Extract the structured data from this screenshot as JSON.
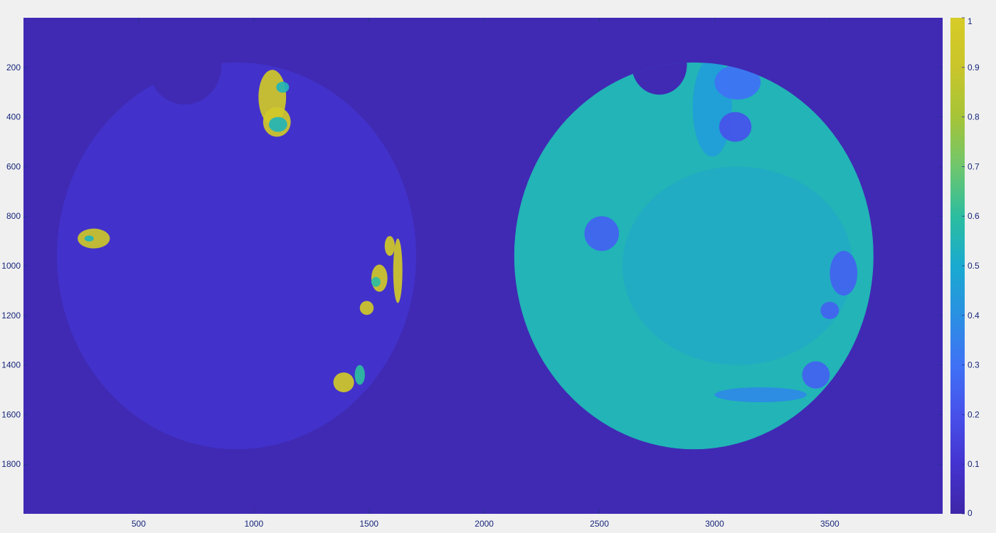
{
  "chart_data": {
    "type": "heatmap",
    "title": "",
    "xlabel": "",
    "ylabel": "",
    "x_ticks": [
      500,
      1000,
      1500,
      2000,
      2500,
      3000,
      3500
    ],
    "y_ticks": [
      200,
      400,
      600,
      800,
      1000,
      1200,
      1400,
      1600,
      1800
    ],
    "xlim": [
      0,
      3990
    ],
    "ylim": [
      0,
      2000
    ],
    "y_direction": "reversed",
    "colormap": "parula",
    "color_range": [
      0,
      1
    ],
    "colorbar": {
      "ticks": [
        0,
        0.1,
        0.2,
        0.3,
        0.4,
        0.5,
        0.6,
        0.7,
        0.8,
        0.9,
        1
      ],
      "tick_labels": [
        "0",
        "0.1",
        "0.2",
        "0.3",
        "0.4",
        "0.5",
        "0.6",
        "0.7",
        "0.8",
        "0.9",
        "1"
      ],
      "placement": "right"
    },
    "background_value": 0.03,
    "regions": [
      {
        "name": "left-disc",
        "shape": "disc",
        "center": [
          925,
          960
        ],
        "radius": 780,
        "notch": {
          "center": [
            700,
            190
          ],
          "radius": 160
        },
        "base_value": 0.09,
        "spots": [
          {
            "center": [
              1080,
              320
            ],
            "rx": 60,
            "ry": 110,
            "value": 0.95
          },
          {
            "center": [
              1100,
              420
            ],
            "rx": 60,
            "ry": 60,
            "value": 0.95
          },
          {
            "center": [
              1105,
              430
            ],
            "rx": 40,
            "ry": 30,
            "value": 0.55
          },
          {
            "center": [
              1125,
              280
            ],
            "rx": 28,
            "ry": 22,
            "value": 0.55
          },
          {
            "center": [
              305,
              890
            ],
            "rx": 70,
            "ry": 40,
            "value": 0.92
          },
          {
            "center": [
              285,
              890
            ],
            "rx": 20,
            "ry": 12,
            "value": 0.55
          },
          {
            "center": [
              1545,
              1050
            ],
            "rx": 35,
            "ry": 55,
            "value": 0.95
          },
          {
            "center": [
              1530,
              1065
            ],
            "rx": 20,
            "ry": 20,
            "value": 0.6
          },
          {
            "center": [
              1625,
              1020
            ],
            "rx": 20,
            "ry": 130,
            "value": 0.95
          },
          {
            "center": [
              1590,
              920
            ],
            "rx": 22,
            "ry": 40,
            "value": 0.95
          },
          {
            "center": [
              1490,
              1170
            ],
            "rx": 30,
            "ry": 28,
            "value": 0.95
          },
          {
            "center": [
              1390,
              1470
            ],
            "rx": 45,
            "ry": 40,
            "value": 0.95
          },
          {
            "center": [
              1460,
              1440
            ],
            "rx": 22,
            "ry": 40,
            "value": 0.6
          }
        ]
      },
      {
        "name": "right-disc",
        "shape": "disc",
        "center": [
          2910,
          960
        ],
        "radius": 780,
        "notch": {
          "center": [
            2760,
            190
          ],
          "radius": 120
        },
        "base_value": 0.55,
        "spots": [
          {
            "center": [
              2990,
              360
            ],
            "rx": 85,
            "ry": 200,
            "value": 0.45
          },
          {
            "center": [
              3100,
              260
            ],
            "rx": 100,
            "ry": 70,
            "value": 0.3
          },
          {
            "center": [
              3090,
              440
            ],
            "rx": 70,
            "ry": 60,
            "value": 0.2
          },
          {
            "center": [
              2510,
              870
            ],
            "rx": 75,
            "ry": 70,
            "value": 0.25
          },
          {
            "center": [
              3560,
              1030
            ],
            "rx": 60,
            "ry": 90,
            "value": 0.25
          },
          {
            "center": [
              3500,
              1180
            ],
            "rx": 40,
            "ry": 35,
            "value": 0.25
          },
          {
            "center": [
              3440,
              1440
            ],
            "rx": 60,
            "ry": 55,
            "value": 0.25
          },
          {
            "center": [
              3200,
              1520
            ],
            "rx": 200,
            "ry": 30,
            "value": 0.38
          },
          {
            "center": [
              3100,
              1000
            ],
            "rx": 500,
            "ry": 400,
            "value": 0.45
          }
        ]
      }
    ]
  }
}
